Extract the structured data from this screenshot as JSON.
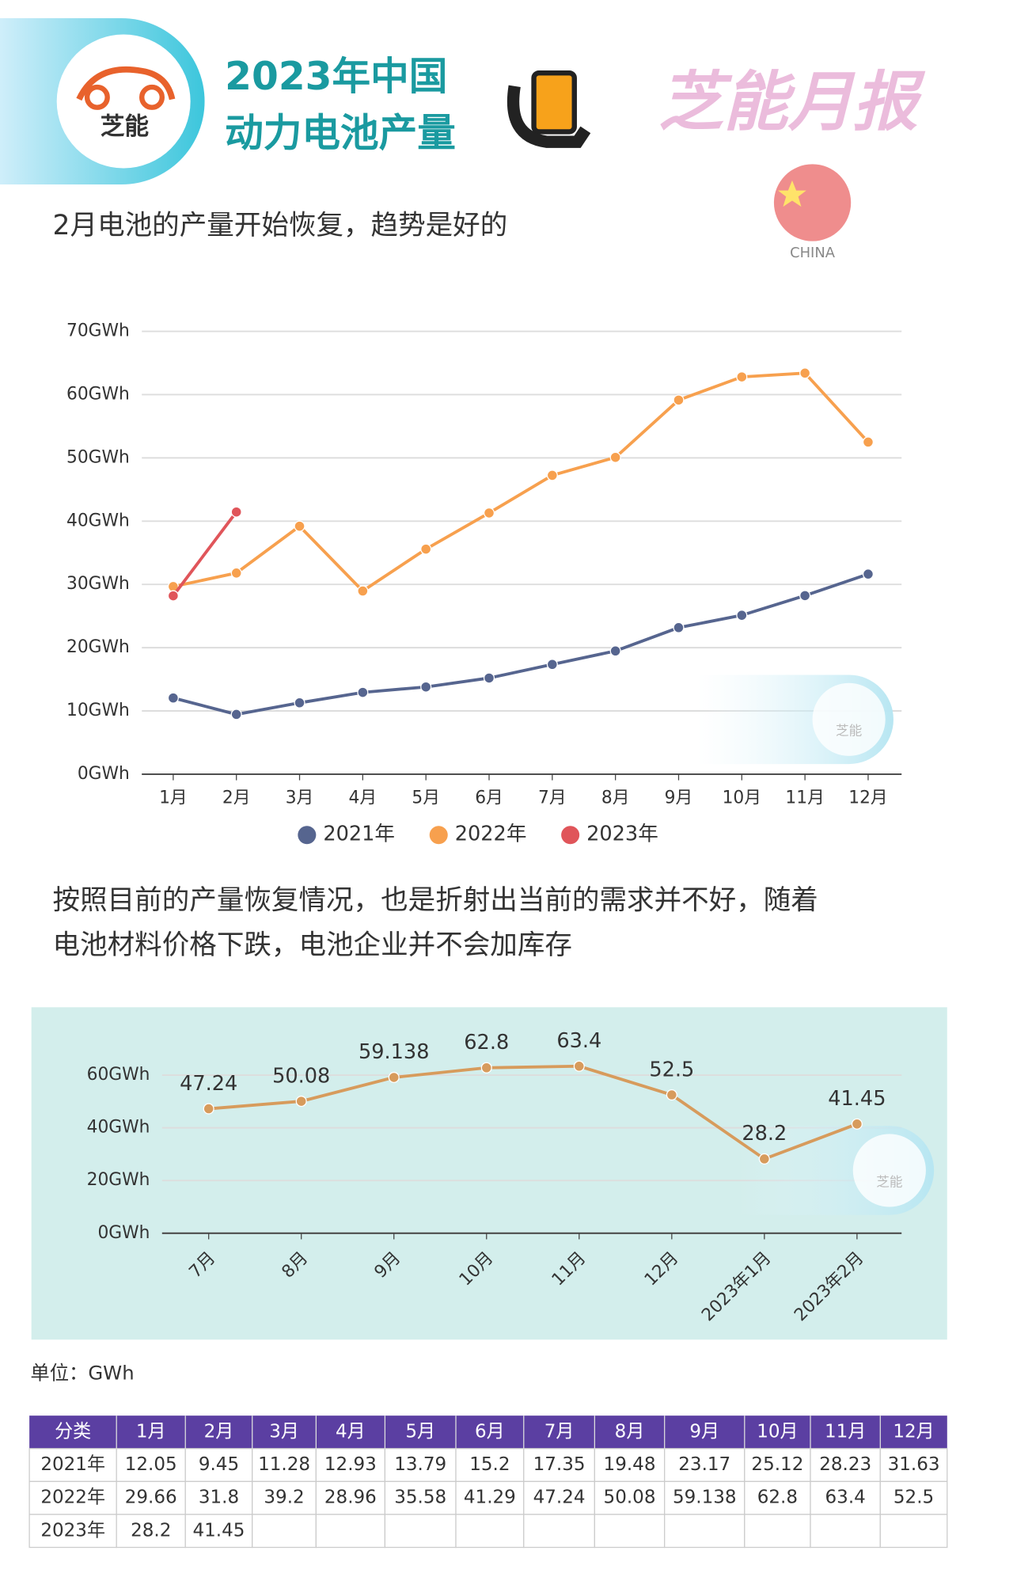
{
  "header": {
    "logo_text": "芝能",
    "title_lines": [
      "2023年中国",
      "动力电池产量"
    ],
    "brand": "芝能月报",
    "flag_label": "CHINA"
  },
  "caption1": "2月电池的产量开始恢复，趋势是好的",
  "caption2": [
    "按照目前的产量恢复情况，也是折射出当前的需求并不好，随着",
    "电池材料价格下跌，电池企业并不会加库存"
  ],
  "unit": "单位：GWh",
  "chart_data": [
    {
      "type": "line",
      "categories": [
        "1月",
        "2月",
        "3月",
        "4月",
        "5月",
        "6月",
        "7月",
        "8月",
        "9月",
        "10月",
        "11月",
        "12月"
      ],
      "series": [
        {
          "name": "2021年",
          "color": "#56658f",
          "values": [
            12.05,
            9.45,
            11.28,
            12.93,
            13.79,
            15.2,
            17.35,
            19.48,
            23.17,
            25.12,
            28.23,
            31.63
          ]
        },
        {
          "name": "2022年",
          "color": "#f7a04e",
          "values": [
            29.66,
            31.8,
            39.2,
            28.96,
            35.58,
            41.29,
            47.24,
            50.08,
            59.138,
            62.8,
            63.4,
            52.5
          ]
        },
        {
          "name": "2023年",
          "color": "#e0555a",
          "values": [
            28.2,
            41.45,
            null,
            null,
            null,
            null,
            null,
            null,
            null,
            null,
            null,
            null
          ]
        }
      ],
      "ylim": [
        0,
        70
      ],
      "yticks": [
        {
          "value": 0,
          "label": "0GWh"
        },
        {
          "value": 10,
          "label": "10GWh"
        },
        {
          "value": 20,
          "label": "20GWh"
        },
        {
          "value": 30,
          "label": "30GWh"
        },
        {
          "value": 40,
          "label": "40GWh"
        },
        {
          "value": 50,
          "label": "50GWh"
        },
        {
          "value": 60,
          "label": "60GWh"
        },
        {
          "value": 70,
          "label": "70GWh"
        }
      ],
      "grid": true,
      "legend": "bottom"
    },
    {
      "type": "line",
      "categories": [
        "7月",
        "8月",
        "9月",
        "10月",
        "11月",
        "12月",
        "2023年1月",
        "2023年2月"
      ],
      "values": [
        47.24,
        50.08,
        59.138,
        62.8,
        63.4,
        52.5,
        28.2,
        41.45
      ],
      "color": "#d79b5c",
      "ylim": [
        0,
        70
      ],
      "yticks": [
        {
          "value": 0,
          "label": "0GWh"
        },
        {
          "value": 20,
          "label": "20GWh"
        },
        {
          "value": 40,
          "label": "40GWh"
        },
        {
          "value": 60,
          "label": "60GWh"
        }
      ],
      "grid": true
    }
  ],
  "table": {
    "header": [
      "分类",
      "1月",
      "2月",
      "3月",
      "4月",
      "5月",
      "6月",
      "7月",
      "8月",
      "9月",
      "10月",
      "11月",
      "12月"
    ],
    "rows": [
      [
        "2021年",
        "12.05",
        "9.45",
        "11.28",
        "12.93",
        "13.79",
        "15.2",
        "17.35",
        "19.48",
        "23.17",
        "25.12",
        "28.23",
        "31.63"
      ],
      [
        "2022年",
        "29.66",
        "31.8",
        "39.2",
        "28.96",
        "35.58",
        "41.29",
        "47.24",
        "50.08",
        "59.138",
        "62.8",
        "63.4",
        "52.5"
      ],
      [
        "2023年",
        "28.2",
        "41.45"
      ]
    ]
  }
}
